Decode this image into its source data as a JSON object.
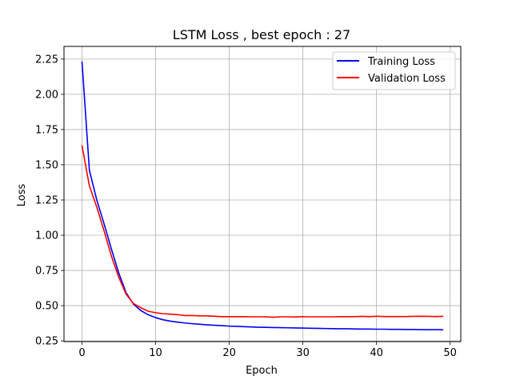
{
  "chart_data": {
    "type": "line",
    "title": "LSTM Loss , best epoch : 27",
    "xlabel": "Epoch",
    "ylabel": "Loss",
    "xlim": [
      -2.45,
      51.45
    ],
    "ylim": [
      0.245,
      2.34
    ],
    "x_ticks": [
      0,
      10,
      20,
      30,
      40,
      50
    ],
    "y_ticks": [
      0.25,
      0.5,
      0.75,
      1.0,
      1.25,
      1.5,
      1.75,
      2.0,
      2.25
    ],
    "x_tick_labels": [
      "0",
      "10",
      "20",
      "30",
      "40",
      "50"
    ],
    "y_tick_labels": [
      "0.25",
      "0.50",
      "0.75",
      "1.00",
      "1.25",
      "1.50",
      "1.75",
      "2.00",
      "2.25"
    ],
    "grid": true,
    "legend_position": "top-right",
    "x": [
      0,
      1,
      2,
      3,
      4,
      5,
      6,
      7,
      8,
      9,
      10,
      11,
      12,
      13,
      14,
      15,
      16,
      17,
      18,
      19,
      20,
      21,
      22,
      23,
      24,
      25,
      26,
      27,
      28,
      29,
      30,
      31,
      32,
      33,
      34,
      35,
      36,
      37,
      38,
      39,
      40,
      41,
      42,
      43,
      44,
      45,
      46,
      47,
      48,
      49
    ],
    "series": [
      {
        "name": "Training Loss",
        "color": "#0000ff",
        "values": [
          2.23,
          1.46,
          1.25,
          1.08,
          0.9,
          0.73,
          0.59,
          0.51,
          0.465,
          0.435,
          0.415,
          0.4,
          0.39,
          0.383,
          0.377,
          0.372,
          0.368,
          0.364,
          0.361,
          0.358,
          0.355,
          0.353,
          0.351,
          0.349,
          0.347,
          0.346,
          0.345,
          0.344,
          0.343,
          0.342,
          0.341,
          0.34,
          0.339,
          0.338,
          0.337,
          0.336,
          0.336,
          0.335,
          0.334,
          0.334,
          0.333,
          0.333,
          0.332,
          0.332,
          0.331,
          0.331,
          0.33,
          0.33,
          0.33,
          0.329
        ]
      },
      {
        "name": "Validation Loss",
        "color": "#ff0000",
        "values": [
          1.635,
          1.35,
          1.2,
          1.03,
          0.85,
          0.7,
          0.58,
          0.515,
          0.485,
          0.46,
          0.45,
          0.443,
          0.44,
          0.436,
          0.43,
          0.43,
          0.428,
          0.427,
          0.425,
          0.422,
          0.422,
          0.422,
          0.422,
          0.421,
          0.421,
          0.421,
          0.418,
          0.421,
          0.421,
          0.42,
          0.422,
          0.421,
          0.421,
          0.421,
          0.421,
          0.422,
          0.422,
          0.422,
          0.424,
          0.422,
          0.425,
          0.423,
          0.423,
          0.423,
          0.423,
          0.424,
          0.425,
          0.424,
          0.423,
          0.424
        ]
      }
    ]
  }
}
